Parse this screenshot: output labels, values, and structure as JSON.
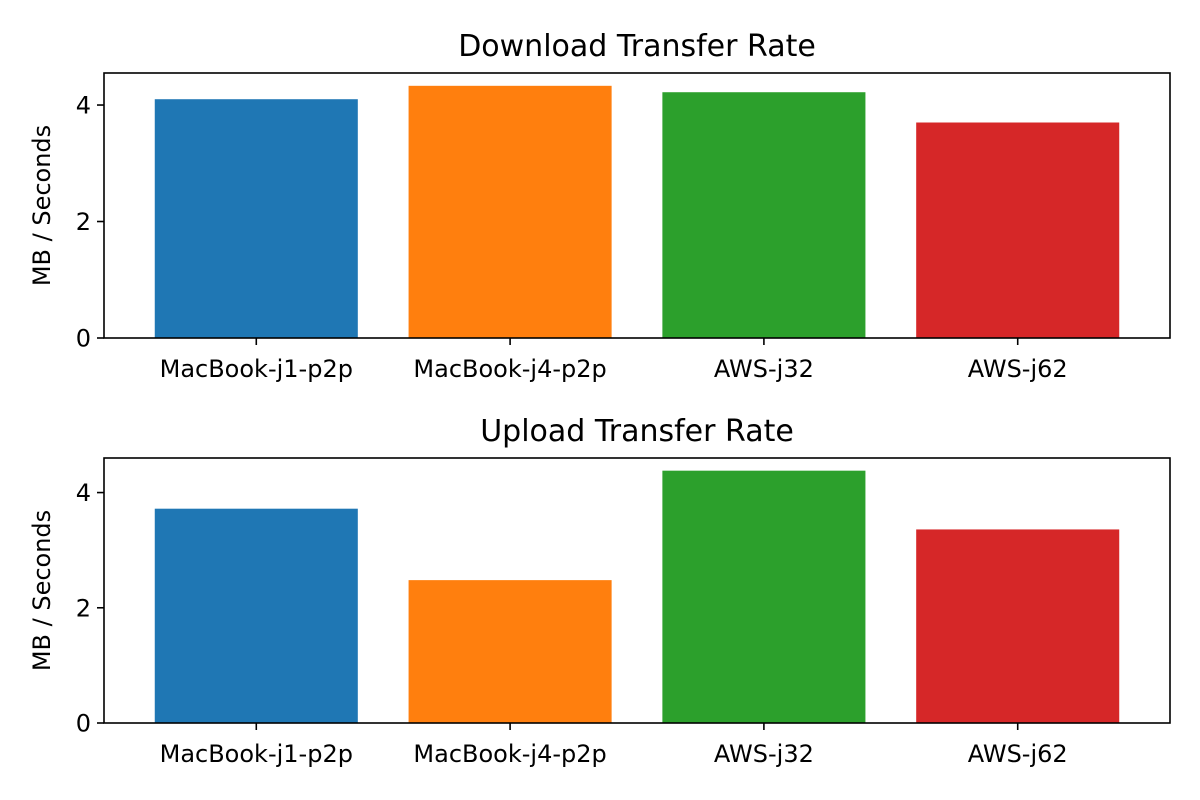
{
  "chart_data": [
    {
      "type": "bar",
      "title": "Download Transfer Rate",
      "ylabel": "MB / Seconds",
      "xlabel": "",
      "categories": [
        "MacBook-j1-p2p",
        "MacBook-j4-p2p",
        "AWS-j32",
        "AWS-j62"
      ],
      "values": [
        4.1,
        4.33,
        4.22,
        3.7
      ],
      "colors": [
        "#1f77b4",
        "#ff7f0e",
        "#2ca02c",
        "#d62728"
      ],
      "ylim": [
        0,
        4.55
      ],
      "yticks": [
        0,
        2,
        4
      ],
      "grid": false
    },
    {
      "type": "bar",
      "title": "Upload Transfer Rate",
      "ylabel": "MB / Seconds",
      "xlabel": "",
      "categories": [
        "MacBook-j1-p2p",
        "MacBook-j4-p2p",
        "AWS-j32",
        "AWS-j62"
      ],
      "values": [
        3.72,
        2.48,
        4.38,
        3.36
      ],
      "colors": [
        "#1f77b4",
        "#ff7f0e",
        "#2ca02c",
        "#d62728"
      ],
      "ylim": [
        0,
        4.6
      ],
      "yticks": [
        0,
        2,
        4
      ],
      "grid": false
    }
  ]
}
